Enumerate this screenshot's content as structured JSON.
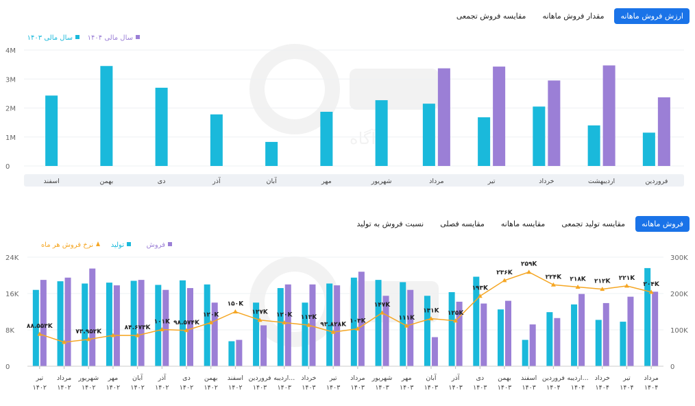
{
  "top_tabs": [
    {
      "label": "ارزش فروش ماهانه",
      "active": true
    },
    {
      "label": "مقدار فروش ماهانه",
      "active": false
    },
    {
      "label": "مقایسه فروش تجمعی",
      "active": false
    }
  ],
  "bottom_tabs": [
    {
      "label": "فروش ماهانه",
      "active": true
    },
    {
      "label": "مقایسه تولید تجمعی",
      "active": false
    },
    {
      "label": "مقایسه ماهانه",
      "active": false
    },
    {
      "label": "مقایسه فصلی",
      "active": false
    },
    {
      "label": "نسبت فروش به تولید",
      "active": false
    }
  ],
  "colors": {
    "cyan": "#1ab9db",
    "purple": "#9b7fd6",
    "orange": "#f5a623",
    "accent": "#1a73e8"
  },
  "watermark": "آگاه",
  "chart_data": [
    {
      "type": "bar",
      "categories": [
        "فروردین",
        "اردیبهشت",
        "خرداد",
        "تیر",
        "مرداد",
        "شهریور",
        "مهر",
        "آبان",
        "آذر",
        "دی",
        "بهمن",
        "اسفند"
      ],
      "series": [
        {
          "name": "سال مالی ۱۴۰۳",
          "color": "#1ab9db",
          "values": [
            1.15,
            1.4,
            2.05,
            1.68,
            2.15,
            2.27,
            1.87,
            0.83,
            1.78,
            2.7,
            3.45,
            2.43
          ]
        },
        {
          "name": "سال مالی ۱۴۰۴",
          "color": "#9b7fd6",
          "values": [
            2.37,
            3.47,
            2.95,
            3.43,
            3.37,
            null,
            null,
            null,
            null,
            null,
            null,
            null
          ]
        }
      ],
      "yticks": [
        "4M",
        "3M",
        "2M",
        "1M",
        "0"
      ],
      "ylim": [
        0,
        4
      ]
    },
    {
      "type": "bar",
      "categories": [
        [
          "تیر",
          "۱۴۰۲"
        ],
        [
          "مرداد",
          "۱۴۰۲"
        ],
        [
          "شهریور",
          "۱۴۰۲"
        ],
        [
          "مهر",
          "۱۴۰۲"
        ],
        [
          "آبان",
          "۱۴۰۲"
        ],
        [
          "آذر",
          "۱۴۰۲"
        ],
        [
          "دی",
          "۱۴۰۲"
        ],
        [
          "بهمن",
          "۱۴۰۲"
        ],
        [
          "اسفند",
          "۱۴۰۲"
        ],
        [
          "فروردین",
          "۱۴۰۳"
        ],
        [
          "اردیبه...",
          "۱۴۰۳"
        ],
        [
          "خرداد",
          "۱۴۰۳"
        ],
        [
          "تیر",
          "۱۴۰۳"
        ],
        [
          "مرداد",
          "۱۴۰۳"
        ],
        [
          "شهریور",
          "۱۴۰۳"
        ],
        [
          "مهر",
          "۱۴۰۳"
        ],
        [
          "آبان",
          "۱۴۰۳"
        ],
        [
          "آذر",
          "۱۴۰۳"
        ],
        [
          "دی",
          "۱۴۰۳"
        ],
        [
          "بهمن",
          "۱۴۰۳"
        ],
        [
          "اسفند",
          "۱۴۰۳"
        ],
        [
          "فروردین",
          "۱۴۰۴"
        ],
        [
          "اردیبه...",
          "۱۴۰۴"
        ],
        [
          "خرداد",
          "۱۴۰۴"
        ],
        [
          "تیر",
          "۱۴۰۴"
        ],
        [
          "مرداد",
          "۱۴۰۴"
        ]
      ],
      "series": [
        {
          "name": "تولید",
          "color": "#1ab9db",
          "axis": "left",
          "values": [
            16.8,
            18.7,
            18.2,
            18.4,
            18.8,
            17.9,
            18.9,
            18.0,
            5.5,
            14.0,
            17.2,
            14.0,
            18.2,
            19.5,
            19.0,
            18.5,
            15.5,
            16.3,
            19.7,
            12.5,
            5.8,
            11.9,
            13.6,
            10.2,
            9.8,
            21.6
          ]
        },
        {
          "name": "فروش",
          "color": "#9b7fd6",
          "axis": "left",
          "values": [
            19.0,
            19.5,
            21.5,
            17.8,
            19.0,
            16.8,
            17.2,
            14.0,
            5.8,
            9.0,
            18.0,
            18.0,
            17.8,
            20.8,
            15.5,
            16.8,
            6.4,
            14.2,
            13.8,
            14.4,
            9.2,
            10.6,
            15.9,
            13.9,
            15.3,
            16.4
          ]
        },
        {
          "name": "نرخ فروش هر ماه",
          "color": "#f5a623",
          "axis": "right",
          "values": [
            88.553,
            66,
            73.952,
            85,
            84.673,
            101,
            98.574,
            120,
            150,
            127,
            120,
            113,
            93.828,
            103,
            147,
            111,
            131,
            125,
            193,
            236,
            259,
            224,
            218,
            212,
            221,
            204
          ],
          "labels": [
            "۸۸.۵۵۳K",
            "",
            "۷۳.۹۵۲K",
            "",
            "۸۴.۶۷۳K",
            "۱۰۱K",
            "۹۸.۵۷۴K",
            "۱۲۰K",
            "۱۵۰K",
            "۱۲۷K",
            "۱۲۰K",
            "۱۱۳K",
            "۹۳.۸۲۸K",
            "۱۰۳K",
            "۱۴۷K",
            "۱۱۱K",
            "۱۳۱K",
            "۱۲۵K",
            "۱۹۳K",
            "۲۳۶K",
            "۲۵۹K",
            "۲۲۴K",
            "۲۱۸K",
            "۲۱۲K",
            "۲۲۱K",
            "۲۰۴K"
          ]
        }
      ],
      "yticks_left": [
        "24K",
        "16K",
        "8K",
        "0"
      ],
      "yticks_right": [
        "300K",
        "200K",
        "100K",
        "0"
      ],
      "ylim_left": [
        0,
        24
      ],
      "ylim_right": [
        0,
        300
      ]
    }
  ]
}
